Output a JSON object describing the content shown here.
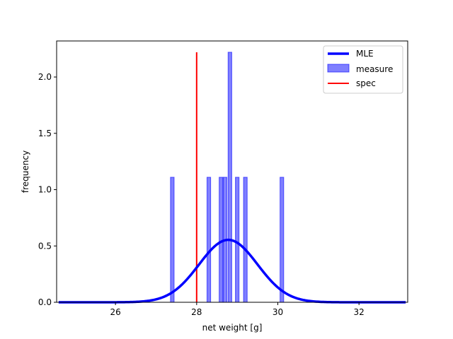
{
  "chart_data": {
    "type": "histogram",
    "xlabel": "net weight [g]",
    "ylabel": "frequency",
    "xlim": [
      24.55,
      33.2
    ],
    "ylim": [
      0,
      2.32
    ],
    "xticks": [
      26,
      28,
      30,
      32
    ],
    "yticks": [
      0.0,
      0.5,
      1.0,
      1.5,
      2.0
    ],
    "xtick_labels": [
      "26",
      "28",
      "30",
      "32"
    ],
    "ytick_labels": [
      "0.0",
      "0.5",
      "1.0",
      "1.5",
      "2.0"
    ],
    "grid": false,
    "legend_position": "top-right",
    "series": [
      {
        "name": "MLE",
        "kind": "line",
        "color": "#0000ff",
        "distribution": "normal",
        "mean": 28.78,
        "sd": 0.72,
        "x_range": [
          24.6,
          33.15
        ]
      },
      {
        "name": "measure",
        "kind": "bar",
        "color": "#0000ff",
        "opacity": 0.5,
        "bin_width": 0.09,
        "bins": [
          {
            "x": 27.4,
            "value": 1.11
          },
          {
            "x": 28.3,
            "value": 1.11
          },
          {
            "x": 28.6,
            "value": 1.11
          },
          {
            "x": 28.7,
            "value": 1.11
          },
          {
            "x": 28.82,
            "value": 2.22
          },
          {
            "x": 29.0,
            "value": 1.11
          },
          {
            "x": 29.2,
            "value": 1.11
          },
          {
            "x": 30.1,
            "value": 1.11
          }
        ]
      },
      {
        "name": "spec",
        "kind": "vline",
        "color": "#ff0000",
        "x": 28.0,
        "y_top": 2.22
      }
    ]
  }
}
